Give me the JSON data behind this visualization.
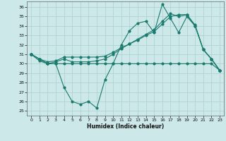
{
  "xlabel": "Humidex (Indice chaleur)",
  "bg_color": "#cce8e8",
  "grid_color": "#aacfcf",
  "line_color": "#1a7a6e",
  "xlim": [
    -0.5,
    23.5
  ],
  "ylim": [
    24.5,
    36.6
  ],
  "yticks": [
    25,
    26,
    27,
    28,
    29,
    30,
    31,
    32,
    33,
    34,
    35,
    36
  ],
  "xticks": [
    0,
    1,
    2,
    3,
    4,
    5,
    6,
    7,
    8,
    9,
    10,
    11,
    12,
    13,
    14,
    15,
    16,
    17,
    18,
    19,
    20,
    21,
    22,
    23
  ],
  "series1": [
    31,
    30.5,
    30,
    30,
    27.5,
    26,
    25.7,
    26,
    25.3,
    28.3,
    30,
    32,
    33.5,
    34.3,
    34.5,
    33.3,
    36.3,
    34.8,
    33.3,
    35,
    34,
    31.5,
    30.5,
    29.3
  ],
  "series2": [
    31,
    30.5,
    30,
    30,
    30,
    30,
    30,
    30,
    30,
    30,
    30,
    30,
    30,
    30,
    30,
    30,
    30,
    30,
    30,
    30,
    30,
    30,
    30,
    29.3
  ],
  "series3": [
    31,
    30.5,
    30.2,
    30.3,
    30.7,
    30.7,
    30.7,
    30.7,
    30.7,
    30.8,
    31.2,
    31.7,
    32.1,
    32.5,
    33.0,
    33.4,
    34.2,
    35.0,
    35.2,
    35.2,
    34.1,
    31.5,
    30.5,
    29.3
  ],
  "series4": [
    31,
    30.3,
    30.0,
    30.2,
    30.5,
    30.2,
    30.2,
    30.2,
    30.3,
    30.5,
    31.0,
    31.6,
    32.1,
    32.6,
    33.1,
    33.6,
    34.5,
    35.3,
    35.0,
    35.2,
    34.0,
    31.5,
    30.5,
    29.3
  ]
}
